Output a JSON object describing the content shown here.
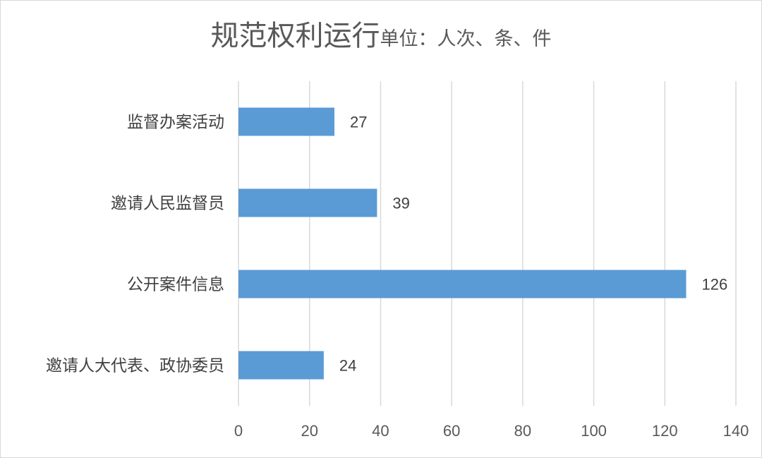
{
  "chart_data": {
    "type": "bar",
    "orientation": "horizontal",
    "title": "规范权利运行",
    "unit": "单位：人次、条、件",
    "categories": [
      "监督办案活动",
      "邀请人民监督员",
      "公开案件信息",
      "邀请人大代表、政协委员"
    ],
    "values": [
      27,
      39,
      126,
      24
    ],
    "xlim": [
      0,
      140
    ],
    "xticks": [
      0,
      20,
      40,
      60,
      80,
      100,
      120,
      140
    ],
    "grid": true,
    "legend": "none",
    "bar_color": "#5b9bd5",
    "grid_color": "#d9d9d9"
  }
}
